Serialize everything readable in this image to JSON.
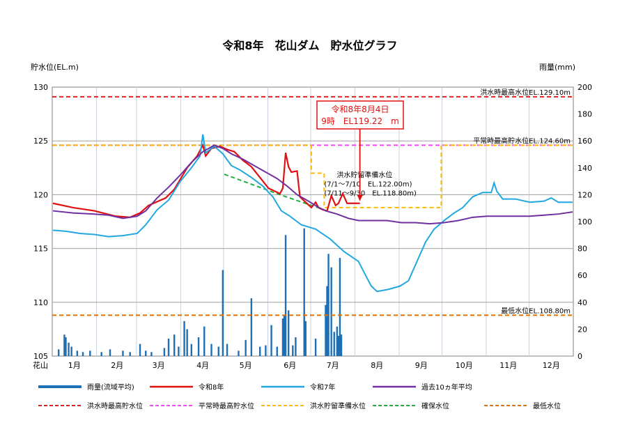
{
  "chart_data": {
    "type": "line",
    "title": "令和8年　花山ダム　貯水位グラフ",
    "ylabel_left": "貯水位(EL.m)",
    "ylabel_right": "雨量(mm)",
    "x_start_label": "花山",
    "months": [
      "1月",
      "2月",
      "3月",
      "4月",
      "5月",
      "6月",
      "7月",
      "8月",
      "9月",
      "10月",
      "11月",
      "12月"
    ],
    "ylim_left": [
      105,
      130
    ],
    "ylim_right": [
      0,
      200
    ],
    "yticks_left": [
      105,
      110,
      115,
      120,
      125,
      130
    ],
    "yticks_right": [
      0,
      20,
      40,
      60,
      80,
      100,
      120,
      140,
      160,
      180,
      200
    ],
    "xlim_days": [
      1,
      365
    ],
    "grid": true,
    "reference_lines": [
      {
        "name": "洪水時最高貯水位",
        "label": "洪水時最高水位EL.129.10m",
        "value": 129.1,
        "color": "#e02020"
      },
      {
        "name": "平常時最高貯水位",
        "label": "平常時最高貯水位EL.124.60m",
        "value": 124.6,
        "color": "#ff40ff"
      },
      {
        "name": "最低水位",
        "label": "最低水位EL.108.80m",
        "value": 108.8,
        "color": "#e07000"
      }
    ],
    "flood_standby": {
      "name": "洪水貯留準備水位",
      "label_lines": [
        "洪水貯留準備水位",
        "(7/1～7/10　EL.122.00m)",
        "(7/11～9/30　EL.118.80m)"
      ],
      "color": "#ffbb00",
      "points": [
        [
          1,
          124.6
        ],
        [
          182,
          124.6
        ],
        [
          182,
          122.0
        ],
        [
          191,
          122.0
        ],
        [
          191,
          118.8
        ],
        [
          273,
          118.8
        ],
        [
          273,
          124.6
        ],
        [
          365,
          124.6
        ]
      ]
    },
    "secure_level": {
      "name": "確保水位",
      "color": "#20b040",
      "points": [
        [
          121,
          121.9
        ],
        [
          160,
          120.0
        ],
        [
          191,
          118.6
        ]
      ]
    },
    "callout": {
      "line1": "令和8年8月4日",
      "line2": "9時　EL119.22　m",
      "x": 216,
      "y": 119.2
    },
    "series": [
      {
        "name": "令和8年",
        "color": "#e01010",
        "points": [
          [
            1,
            119.2
          ],
          [
            15,
            118.8
          ],
          [
            30,
            118.5
          ],
          [
            45,
            118.0
          ],
          [
            55,
            117.9
          ],
          [
            62,
            118.3
          ],
          [
            68,
            119.0
          ],
          [
            80,
            119.7
          ],
          [
            86,
            120.5
          ],
          [
            95,
            122.5
          ],
          [
            102,
            123.6
          ],
          [
            106,
            124.6
          ],
          [
            108,
            123.6
          ],
          [
            112,
            124.3
          ],
          [
            118,
            124.5
          ],
          [
            123,
            124.2
          ],
          [
            128,
            124.0
          ],
          [
            134,
            123.2
          ],
          [
            140,
            122.6
          ],
          [
            146,
            121.6
          ],
          [
            152,
            120.6
          ],
          [
            160,
            120.1
          ],
          [
            162,
            120.6
          ],
          [
            164,
            123.9
          ],
          [
            166,
            122.6
          ],
          [
            168,
            122.1
          ],
          [
            172,
            122.2
          ],
          [
            174,
            119.8
          ],
          [
            178,
            119.3
          ],
          [
            182,
            118.8
          ],
          [
            185,
            119.3
          ],
          [
            187,
            118.8
          ],
          [
            190,
            118.6
          ],
          [
            193,
            118.5
          ],
          [
            196,
            119.9
          ],
          [
            199,
            119.0
          ],
          [
            201,
            119.2
          ],
          [
            204,
            120.1
          ],
          [
            207,
            119.2
          ],
          [
            216,
            119.2
          ]
        ]
      },
      {
        "name": "令和7年",
        "color": "#20a8e0",
        "points": [
          [
            1,
            116.7
          ],
          [
            10,
            116.6
          ],
          [
            20,
            116.4
          ],
          [
            30,
            116.3
          ],
          [
            40,
            116.1
          ],
          [
            50,
            116.2
          ],
          [
            60,
            116.4
          ],
          [
            66,
            117.2
          ],
          [
            74,
            118.6
          ],
          [
            82,
            119.5
          ],
          [
            90,
            121.2
          ],
          [
            98,
            122.5
          ],
          [
            104,
            123.6
          ],
          [
            106,
            125.6
          ],
          [
            108,
            123.9
          ],
          [
            114,
            124.5
          ],
          [
            120,
            123.8
          ],
          [
            126,
            122.7
          ],
          [
            132,
            122.3
          ],
          [
            140,
            121.6
          ],
          [
            148,
            120.8
          ],
          [
            155,
            119.8
          ],
          [
            161,
            118.5
          ],
          [
            167,
            118.0
          ],
          [
            175,
            117.2
          ],
          [
            185,
            116.8
          ],
          [
            195,
            115.9
          ],
          [
            205,
            114.7
          ],
          [
            215,
            113.8
          ],
          [
            220,
            112.5
          ],
          [
            224,
            111.5
          ],
          [
            228,
            111.0
          ],
          [
            236,
            111.2
          ],
          [
            244,
            111.5
          ],
          [
            250,
            112.0
          ],
          [
            256,
            113.8
          ],
          [
            262,
            115.6
          ],
          [
            268,
            116.8
          ],
          [
            275,
            117.6
          ],
          [
            282,
            118.3
          ],
          [
            288,
            118.8
          ],
          [
            295,
            119.8
          ],
          [
            302,
            120.2
          ],
          [
            308,
            120.2
          ],
          [
            310,
            121.1
          ],
          [
            312,
            120.3
          ],
          [
            316,
            119.6
          ],
          [
            325,
            119.6
          ],
          [
            335,
            119.3
          ],
          [
            345,
            119.4
          ],
          [
            350,
            119.7
          ],
          [
            355,
            119.3
          ],
          [
            365,
            119.3
          ]
        ]
      },
      {
        "name": "過去10ヵ年平均",
        "color": "#7030a0",
        "points": [
          [
            1,
            118.5
          ],
          [
            15,
            118.3
          ],
          [
            30,
            118.2
          ],
          [
            40,
            118.1
          ],
          [
            50,
            117.8
          ],
          [
            60,
            118.0
          ],
          [
            66,
            118.5
          ],
          [
            74,
            119.7
          ],
          [
            82,
            120.7
          ],
          [
            90,
            121.8
          ],
          [
            98,
            123.0
          ],
          [
            106,
            124.0
          ],
          [
            114,
            124.6
          ],
          [
            120,
            124.3
          ],
          [
            126,
            123.8
          ],
          [
            134,
            123.3
          ],
          [
            142,
            122.7
          ],
          [
            150,
            122.1
          ],
          [
            158,
            121.5
          ],
          [
            165,
            120.8
          ],
          [
            172,
            120.0
          ],
          [
            180,
            119.4
          ],
          [
            186,
            118.9
          ],
          [
            192,
            118.5
          ],
          [
            200,
            118.2
          ],
          [
            208,
            117.8
          ],
          [
            215,
            117.6
          ],
          [
            225,
            117.6
          ],
          [
            235,
            117.6
          ],
          [
            245,
            117.4
          ],
          [
            255,
            117.4
          ],
          [
            265,
            117.3
          ],
          [
            275,
            117.4
          ],
          [
            285,
            117.6
          ],
          [
            295,
            117.9
          ],
          [
            305,
            118.0
          ],
          [
            315,
            118.0
          ],
          [
            325,
            118.0
          ],
          [
            335,
            118.0
          ],
          [
            345,
            118.1
          ],
          [
            355,
            118.2
          ],
          [
            365,
            118.4
          ]
        ]
      }
    ],
    "rainfall": {
      "name": "雨量(流域平均)",
      "color": "#1f6fb5",
      "bars": [
        [
          5,
          5
        ],
        [
          9,
          16
        ],
        [
          10,
          14
        ],
        [
          12,
          10
        ],
        [
          14,
          7
        ],
        [
          18,
          4
        ],
        [
          22,
          3
        ],
        [
          27,
          4
        ],
        [
          35,
          3
        ],
        [
          41,
          5
        ],
        [
          50,
          4
        ],
        [
          55,
          3
        ],
        [
          62,
          9
        ],
        [
          66,
          4
        ],
        [
          70,
          3
        ],
        [
          79,
          6
        ],
        [
          82,
          13
        ],
        [
          86,
          16
        ],
        [
          89,
          7
        ],
        [
          93,
          26
        ],
        [
          95,
          20
        ],
        [
          98,
          9
        ],
        [
          103,
          14
        ],
        [
          107,
          22
        ],
        [
          112,
          9
        ],
        [
          117,
          7
        ],
        [
          120,
          64
        ],
        [
          123,
          9
        ],
        [
          131,
          4
        ],
        [
          136,
          12
        ],
        [
          140,
          43
        ],
        [
          146,
          7
        ],
        [
          150,
          8
        ],
        [
          154,
          23
        ],
        [
          158,
          7
        ],
        [
          162,
          28
        ],
        [
          163,
          30
        ],
        [
          164,
          90
        ],
        [
          166,
          34
        ],
        [
          169,
          8
        ],
        [
          171,
          14
        ],
        [
          177,
          95
        ],
        [
          178,
          26
        ],
        [
          185,
          13
        ],
        [
          192,
          38
        ],
        [
          193,
          52
        ],
        [
          194,
          76
        ],
        [
          196,
          66
        ],
        [
          198,
          18
        ],
        [
          200,
          22
        ],
        [
          201,
          15
        ],
        [
          202,
          73
        ],
        [
          203,
          16
        ]
      ]
    },
    "legend": [
      "雨量(流域平均)",
      "令和8年",
      "令和7年",
      "過去10ヵ年平均",
      "洪水時最高貯水位",
      "平常時最高貯水位",
      "洪水貯留準備水位",
      "確保水位",
      "最低水位"
    ]
  }
}
